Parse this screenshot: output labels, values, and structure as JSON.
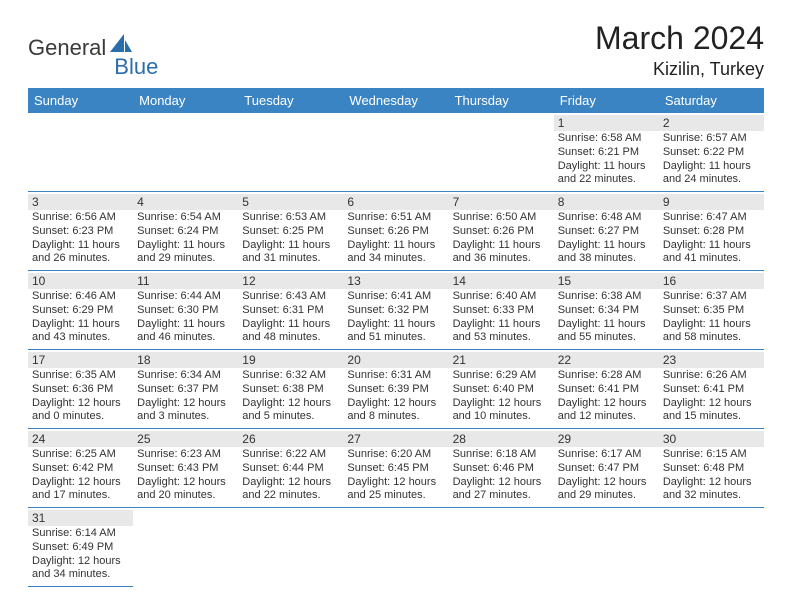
{
  "logo": {
    "general": "General",
    "blue": "Blue"
  },
  "title": "March 2024",
  "location": "Kizilin, Turkey",
  "colors": {
    "header_bg": "#3b84c4",
    "header_text": "#ffffff",
    "daynum_bg": "#e8e8e8",
    "border": "#3b84c4",
    "text": "#333333",
    "logo_gray": "#3a3a3a",
    "logo_blue": "#2a6dad"
  },
  "day_headers": [
    "Sunday",
    "Monday",
    "Tuesday",
    "Wednesday",
    "Thursday",
    "Friday",
    "Saturday"
  ],
  "weeks": [
    [
      null,
      null,
      null,
      null,
      null,
      {
        "n": "1",
        "sr": "Sunrise: 6:58 AM",
        "ss": "Sunset: 6:21 PM",
        "d1": "Daylight: 11 hours",
        "d2": "and 22 minutes."
      },
      {
        "n": "2",
        "sr": "Sunrise: 6:57 AM",
        "ss": "Sunset: 6:22 PM",
        "d1": "Daylight: 11 hours",
        "d2": "and 24 minutes."
      }
    ],
    [
      {
        "n": "3",
        "sr": "Sunrise: 6:56 AM",
        "ss": "Sunset: 6:23 PM",
        "d1": "Daylight: 11 hours",
        "d2": "and 26 minutes."
      },
      {
        "n": "4",
        "sr": "Sunrise: 6:54 AM",
        "ss": "Sunset: 6:24 PM",
        "d1": "Daylight: 11 hours",
        "d2": "and 29 minutes."
      },
      {
        "n": "5",
        "sr": "Sunrise: 6:53 AM",
        "ss": "Sunset: 6:25 PM",
        "d1": "Daylight: 11 hours",
        "d2": "and 31 minutes."
      },
      {
        "n": "6",
        "sr": "Sunrise: 6:51 AM",
        "ss": "Sunset: 6:26 PM",
        "d1": "Daylight: 11 hours",
        "d2": "and 34 minutes."
      },
      {
        "n": "7",
        "sr": "Sunrise: 6:50 AM",
        "ss": "Sunset: 6:26 PM",
        "d1": "Daylight: 11 hours",
        "d2": "and 36 minutes."
      },
      {
        "n": "8",
        "sr": "Sunrise: 6:48 AM",
        "ss": "Sunset: 6:27 PM",
        "d1": "Daylight: 11 hours",
        "d2": "and 38 minutes."
      },
      {
        "n": "9",
        "sr": "Sunrise: 6:47 AM",
        "ss": "Sunset: 6:28 PM",
        "d1": "Daylight: 11 hours",
        "d2": "and 41 minutes."
      }
    ],
    [
      {
        "n": "10",
        "sr": "Sunrise: 6:46 AM",
        "ss": "Sunset: 6:29 PM",
        "d1": "Daylight: 11 hours",
        "d2": "and 43 minutes."
      },
      {
        "n": "11",
        "sr": "Sunrise: 6:44 AM",
        "ss": "Sunset: 6:30 PM",
        "d1": "Daylight: 11 hours",
        "d2": "and 46 minutes."
      },
      {
        "n": "12",
        "sr": "Sunrise: 6:43 AM",
        "ss": "Sunset: 6:31 PM",
        "d1": "Daylight: 11 hours",
        "d2": "and 48 minutes."
      },
      {
        "n": "13",
        "sr": "Sunrise: 6:41 AM",
        "ss": "Sunset: 6:32 PM",
        "d1": "Daylight: 11 hours",
        "d2": "and 51 minutes."
      },
      {
        "n": "14",
        "sr": "Sunrise: 6:40 AM",
        "ss": "Sunset: 6:33 PM",
        "d1": "Daylight: 11 hours",
        "d2": "and 53 minutes."
      },
      {
        "n": "15",
        "sr": "Sunrise: 6:38 AM",
        "ss": "Sunset: 6:34 PM",
        "d1": "Daylight: 11 hours",
        "d2": "and 55 minutes."
      },
      {
        "n": "16",
        "sr": "Sunrise: 6:37 AM",
        "ss": "Sunset: 6:35 PM",
        "d1": "Daylight: 11 hours",
        "d2": "and 58 minutes."
      }
    ],
    [
      {
        "n": "17",
        "sr": "Sunrise: 6:35 AM",
        "ss": "Sunset: 6:36 PM",
        "d1": "Daylight: 12 hours",
        "d2": "and 0 minutes."
      },
      {
        "n": "18",
        "sr": "Sunrise: 6:34 AM",
        "ss": "Sunset: 6:37 PM",
        "d1": "Daylight: 12 hours",
        "d2": "and 3 minutes."
      },
      {
        "n": "19",
        "sr": "Sunrise: 6:32 AM",
        "ss": "Sunset: 6:38 PM",
        "d1": "Daylight: 12 hours",
        "d2": "and 5 minutes."
      },
      {
        "n": "20",
        "sr": "Sunrise: 6:31 AM",
        "ss": "Sunset: 6:39 PM",
        "d1": "Daylight: 12 hours",
        "d2": "and 8 minutes."
      },
      {
        "n": "21",
        "sr": "Sunrise: 6:29 AM",
        "ss": "Sunset: 6:40 PM",
        "d1": "Daylight: 12 hours",
        "d2": "and 10 minutes."
      },
      {
        "n": "22",
        "sr": "Sunrise: 6:28 AM",
        "ss": "Sunset: 6:41 PM",
        "d1": "Daylight: 12 hours",
        "d2": "and 12 minutes."
      },
      {
        "n": "23",
        "sr": "Sunrise: 6:26 AM",
        "ss": "Sunset: 6:41 PM",
        "d1": "Daylight: 12 hours",
        "d2": "and 15 minutes."
      }
    ],
    [
      {
        "n": "24",
        "sr": "Sunrise: 6:25 AM",
        "ss": "Sunset: 6:42 PM",
        "d1": "Daylight: 12 hours",
        "d2": "and 17 minutes."
      },
      {
        "n": "25",
        "sr": "Sunrise: 6:23 AM",
        "ss": "Sunset: 6:43 PM",
        "d1": "Daylight: 12 hours",
        "d2": "and 20 minutes."
      },
      {
        "n": "26",
        "sr": "Sunrise: 6:22 AM",
        "ss": "Sunset: 6:44 PM",
        "d1": "Daylight: 12 hours",
        "d2": "and 22 minutes."
      },
      {
        "n": "27",
        "sr": "Sunrise: 6:20 AM",
        "ss": "Sunset: 6:45 PM",
        "d1": "Daylight: 12 hours",
        "d2": "and 25 minutes."
      },
      {
        "n": "28",
        "sr": "Sunrise: 6:18 AM",
        "ss": "Sunset: 6:46 PM",
        "d1": "Daylight: 12 hours",
        "d2": "and 27 minutes."
      },
      {
        "n": "29",
        "sr": "Sunrise: 6:17 AM",
        "ss": "Sunset: 6:47 PM",
        "d1": "Daylight: 12 hours",
        "d2": "and 29 minutes."
      },
      {
        "n": "30",
        "sr": "Sunrise: 6:15 AM",
        "ss": "Sunset: 6:48 PM",
        "d1": "Daylight: 12 hours",
        "d2": "and 32 minutes."
      }
    ],
    [
      {
        "n": "31",
        "sr": "Sunrise: 6:14 AM",
        "ss": "Sunset: 6:49 PM",
        "d1": "Daylight: 12 hours",
        "d2": "and 34 minutes."
      },
      null,
      null,
      null,
      null,
      null,
      null
    ]
  ]
}
